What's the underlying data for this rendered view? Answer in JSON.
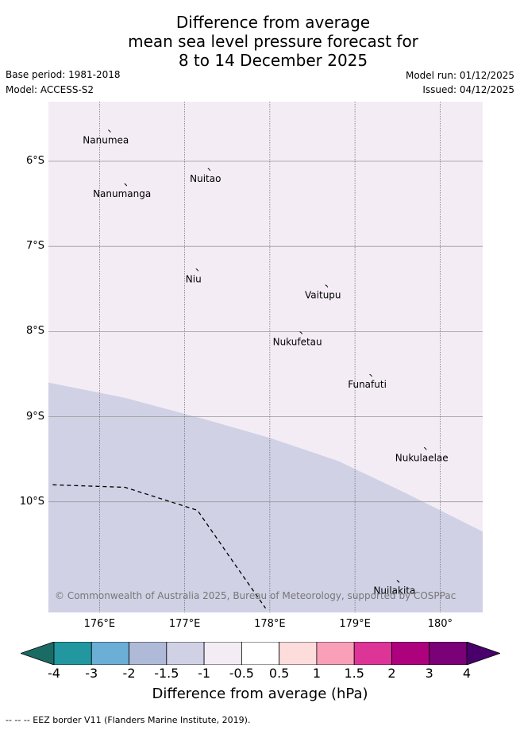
{
  "title_lines": [
    "Difference from average",
    "mean sea level pressure forecast for",
    "8 to 14 December 2025"
  ],
  "meta": {
    "base_period": "Base period: 1981-2018",
    "model": "Model: ACCESS-S2",
    "model_run": "Model run: 01/12/2025",
    "issued": "Issued: 04/12/2025"
  },
  "map": {
    "lon_range": [
      175.4,
      180.5
    ],
    "lat_range": [
      -5.3,
      -11.3
    ],
    "lat_labels": [
      {
        "lat": -6,
        "label": "6°S"
      },
      {
        "lat": -7,
        "label": "7°S"
      },
      {
        "lat": -8,
        "label": "8°S"
      },
      {
        "lat": -9,
        "label": "9°S"
      },
      {
        "lat": -10,
        "label": "10°S"
      }
    ],
    "lon_labels": [
      {
        "lon": 176,
        "label": "176°E"
      },
      {
        "lon": 177,
        "label": "177°E"
      },
      {
        "lon": 178,
        "label": "178°E"
      },
      {
        "lon": 179,
        "label": "179°E"
      },
      {
        "lon": 180,
        "label": "180°"
      }
    ],
    "colors": {
      "background_fill": "#f3ecf5",
      "lower_fill": "#d0d1e5",
      "grid": "#999999"
    },
    "zone_boundary": [
      [
        175.4,
        -8.6
      ],
      [
        176.3,
        -8.78
      ],
      [
        177.2,
        -9.02
      ],
      [
        178.0,
        -9.25
      ],
      [
        178.8,
        -9.52
      ],
      [
        179.6,
        -9.9
      ],
      [
        180.5,
        -10.35
      ]
    ],
    "eez_border": [
      [
        175.45,
        -9.8
      ],
      [
        176.3,
        -9.83
      ],
      [
        177.15,
        -10.1
      ],
      [
        177.6,
        -10.75
      ],
      [
        177.95,
        -11.25
      ]
    ],
    "places": [
      {
        "name": "Nanumea",
        "lon": 176.13,
        "lat": -5.66
      },
      {
        "name": "Nuitao",
        "lon": 177.3,
        "lat": -6.11
      },
      {
        "name": "Nanumanga",
        "lon": 176.32,
        "lat": -6.29
      },
      {
        "name": "Niu",
        "lon": 177.16,
        "lat": -7.29
      },
      {
        "name": "Vaitupu",
        "lon": 178.68,
        "lat": -7.48
      },
      {
        "name": "Nukufetau",
        "lon": 178.38,
        "lat": -8.03
      },
      {
        "name": "Funafuti",
        "lon": 179.2,
        "lat": -8.53
      },
      {
        "name": "Nukulaelae",
        "lon": 179.84,
        "lat": -9.39
      },
      {
        "name": "Nuilakita",
        "lon": 179.52,
        "lat": -10.95
      }
    ],
    "copyright": "© Commonwealth of Australia 2025, Bureau of Meteorology, supported by COSPPac"
  },
  "colorbar": {
    "bins": [
      {
        "label": "-4",
        "color": "#1a6b63"
      },
      {
        "label": "-3",
        "color": "#2297a0"
      },
      {
        "label": "-2",
        "color": "#6baed6"
      },
      {
        "label": "-1.5",
        "color": "#afbad8"
      },
      {
        "label": "-1",
        "color": "#d0d1e5"
      },
      {
        "label": "-0.5",
        "color": "#f3ecf5"
      },
      {
        "label": "0.5",
        "color": "#ffffff"
      },
      {
        "label": "1",
        "color": "#fddcdc"
      },
      {
        "label": "1.5",
        "color": "#f99fb8"
      },
      {
        "label": "2",
        "color": "#dd3497"
      },
      {
        "label": "3",
        "color": "#ae017e"
      },
      {
        "label": "4",
        "color": "#7a0177"
      }
    ],
    "over_color": "#49006a",
    "title": "Difference from average (hPa)"
  },
  "footnote": "-- -- -- EEZ border V11 (Flanders Marine Institute, 2019)."
}
